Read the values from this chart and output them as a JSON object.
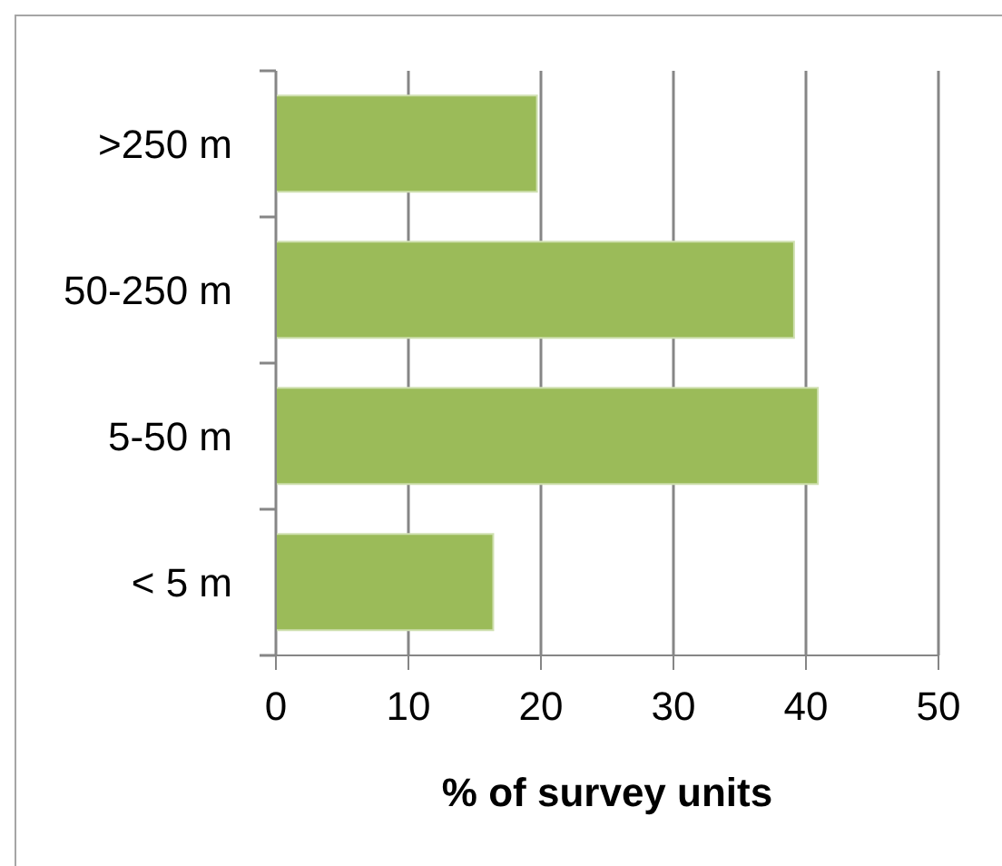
{
  "chart_data": {
    "type": "bar",
    "orientation": "horizontal",
    "categories": [
      ">250 m",
      "50-250 m",
      "5-50 m",
      "< 5 m"
    ],
    "values": [
      19.7,
      39.1,
      40.9,
      16.4
    ],
    "color": "#9bbb59",
    "xlabel": "% of survey units",
    "xlim": [
      0,
      50
    ],
    "xticks": [
      0,
      10,
      20,
      30,
      40,
      50
    ],
    "grid": "x",
    "legend": false
  }
}
